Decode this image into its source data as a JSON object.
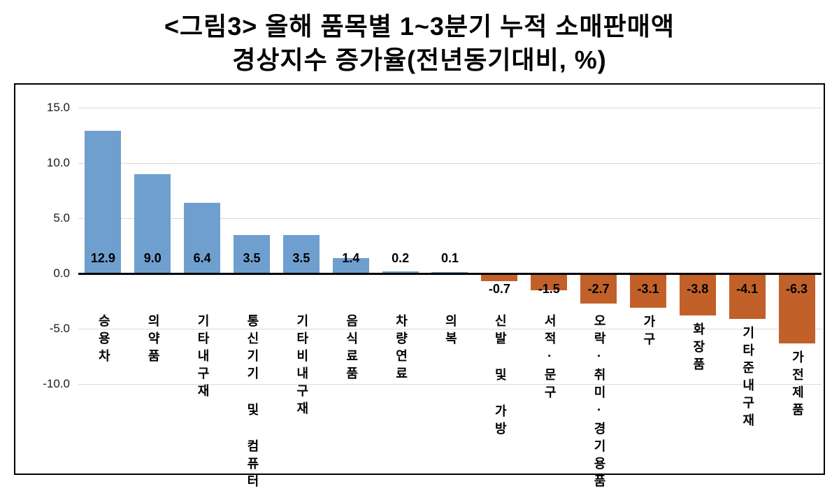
{
  "title": {
    "line1": "<그림3> 올해 품목별 1~3분기 누적 소매판매액",
    "line2": "경상지수 증가율(전년동기대비, %)"
  },
  "chart_data": {
    "type": "bar",
    "title": "<그림3> 올해 품목별 1~3분기 누적 소매판매액 경상지수 증가율(전년동기대비, %)",
    "xlabel": "",
    "ylabel": "",
    "categories": [
      "승용차",
      "의약품",
      "기타내구재",
      "통신기기 및 컴퓨터",
      "기타비내구재",
      "음식료품",
      "차량연료",
      "의복",
      "신발 및 가방",
      "서적·문구",
      "오락·취미·경기용품",
      "가구",
      "화장품",
      "기타준내구재",
      "가전제품"
    ],
    "values": [
      12.9,
      9.0,
      6.4,
      3.5,
      3.5,
      1.4,
      0.2,
      0.1,
      -0.7,
      -1.5,
      -2.7,
      -3.1,
      -3.8,
      -4.1,
      -6.3
    ],
    "yticks": [
      15.0,
      10.0,
      5.0,
      0.0,
      -5.0,
      -10.0
    ],
    "ylim": [
      -10.0,
      15.0
    ],
    "grid": true,
    "legend": false,
    "value_labels_shown": true,
    "colors": {
      "positive": "#6f9fce",
      "negative": "#c2602a",
      "gridline": "#d9d9d9",
      "axis": "#000000"
    }
  }
}
